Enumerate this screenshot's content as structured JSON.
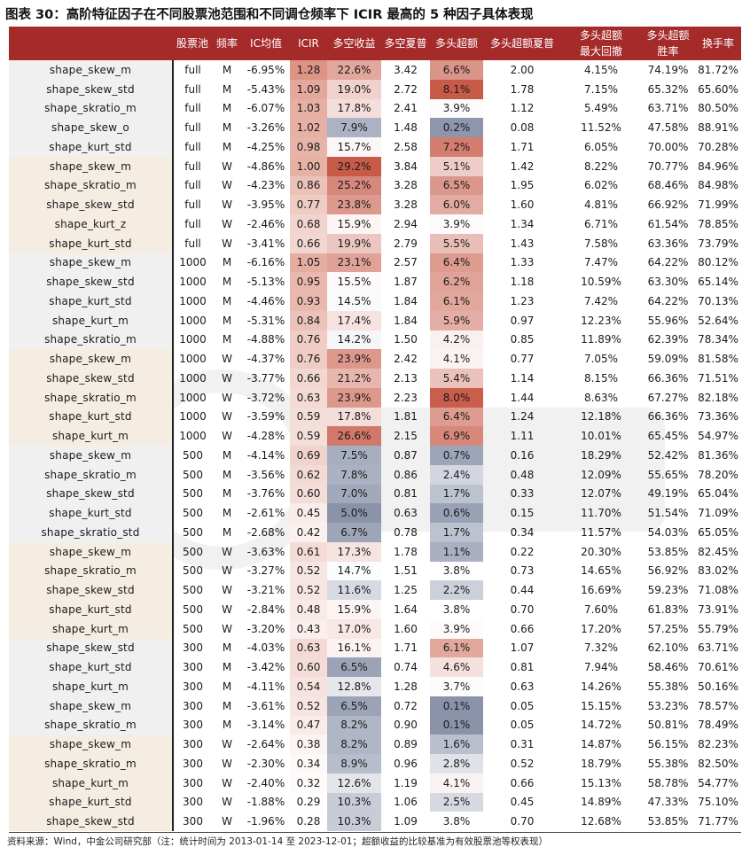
{
  "title": "图表 30：高阶特征因子在不同股票池范围和不同调仓频率下 ICIR 最高的 5 种因子具体表现",
  "headers": [
    "",
    "股票池",
    "频率",
    "IC均值",
    "ICIR",
    "多空收益",
    "多空夏普",
    "多头超额",
    "多头超额夏普",
    "多头超额最大回撤",
    "多头超额胜率",
    "换手率"
  ],
  "header_mdd_line1": "多头超额",
  "header_mdd_line2": "最大回撤",
  "rows": [
    {
      "factor": "shape_skew_m",
      "pool": "full",
      "freq": "M",
      "ic": "-6.95%",
      "icir": "1.28",
      "ls": "22.6%",
      "lss": "3.42",
      "ex": "6.6%",
      "exs": "2.00",
      "mdd": "4.15%",
      "win": "74.19%",
      "turn": "81.72%"
    },
    {
      "factor": "shape_skew_std",
      "pool": "full",
      "freq": "M",
      "ic": "-5.43%",
      "icir": "1.09",
      "ls": "19.0%",
      "lss": "2.72",
      "ex": "8.1%",
      "exs": "1.78",
      "mdd": "7.15%",
      "win": "65.32%",
      "turn": "65.60%"
    },
    {
      "factor": "shape_skratio_m",
      "pool": "full",
      "freq": "M",
      "ic": "-6.07%",
      "icir": "1.03",
      "ls": "17.8%",
      "lss": "2.41",
      "ex": "3.9%",
      "exs": "1.12",
      "mdd": "5.49%",
      "win": "63.71%",
      "turn": "80.50%"
    },
    {
      "factor": "shape_skew_o",
      "pool": "full",
      "freq": "M",
      "ic": "-3.26%",
      "icir": "1.02",
      "ls": "7.9%",
      "lss": "1.48",
      "ex": "0.2%",
      "exs": "0.08",
      "mdd": "11.52%",
      "win": "47.58%",
      "turn": "88.91%"
    },
    {
      "factor": "shape_kurt_std",
      "pool": "full",
      "freq": "M",
      "ic": "-4.25%",
      "icir": "0.98",
      "ls": "15.7%",
      "lss": "2.58",
      "ex": "7.2%",
      "exs": "1.71",
      "mdd": "6.05%",
      "win": "70.00%",
      "turn": "70.28%"
    },
    {
      "factor": "shape_skew_m",
      "pool": "full",
      "freq": "W",
      "ic": "-4.86%",
      "icir": "1.00",
      "ls": "29.2%",
      "lss": "3.84",
      "ex": "5.1%",
      "exs": "1.42",
      "mdd": "8.22%",
      "win": "70.77%",
      "turn": "84.96%"
    },
    {
      "factor": "shape_skratio_m",
      "pool": "full",
      "freq": "W",
      "ic": "-4.23%",
      "icir": "0.86",
      "ls": "25.2%",
      "lss": "3.28",
      "ex": "6.5%",
      "exs": "1.95",
      "mdd": "6.02%",
      "win": "68.46%",
      "turn": "84.98%"
    },
    {
      "factor": "shape_skew_std",
      "pool": "full",
      "freq": "W",
      "ic": "-3.95%",
      "icir": "0.77",
      "ls": "23.8%",
      "lss": "3.28",
      "ex": "6.0%",
      "exs": "1.60",
      "mdd": "4.81%",
      "win": "66.92%",
      "turn": "71.99%"
    },
    {
      "factor": "shape_kurt_z",
      "pool": "full",
      "freq": "W",
      "ic": "-2.46%",
      "icir": "0.68",
      "ls": "15.9%",
      "lss": "2.94",
      "ex": "3.9%",
      "exs": "1.34",
      "mdd": "6.71%",
      "win": "61.54%",
      "turn": "78.85%"
    },
    {
      "factor": "shape_kurt_std",
      "pool": "full",
      "freq": "W",
      "ic": "-3.41%",
      "icir": "0.66",
      "ls": "19.9%",
      "lss": "2.79",
      "ex": "5.5%",
      "exs": "1.43",
      "mdd": "7.58%",
      "win": "63.36%",
      "turn": "73.79%"
    },
    {
      "factor": "shape_skew_m",
      "pool": "1000",
      "freq": "M",
      "ic": "-6.16%",
      "icir": "1.05",
      "ls": "23.1%",
      "lss": "2.57",
      "ex": "6.4%",
      "exs": "1.33",
      "mdd": "7.47%",
      "win": "64.22%",
      "turn": "80.12%"
    },
    {
      "factor": "shape_skew_std",
      "pool": "1000",
      "freq": "M",
      "ic": "-5.13%",
      "icir": "0.95",
      "ls": "15.5%",
      "lss": "1.87",
      "ex": "6.2%",
      "exs": "1.18",
      "mdd": "10.59%",
      "win": "63.30%",
      "turn": "65.14%"
    },
    {
      "factor": "shape_kurt_std",
      "pool": "1000",
      "freq": "M",
      "ic": "-4.46%",
      "icir": "0.93",
      "ls": "14.5%",
      "lss": "1.84",
      "ex": "6.1%",
      "exs": "1.23",
      "mdd": "7.42%",
      "win": "64.22%",
      "turn": "70.13%"
    },
    {
      "factor": "shape_kurt_m",
      "pool": "1000",
      "freq": "M",
      "ic": "-5.31%",
      "icir": "0.84",
      "ls": "17.4%",
      "lss": "1.84",
      "ex": "5.9%",
      "exs": "0.97",
      "mdd": "12.23%",
      "win": "55.96%",
      "turn": "52.64%"
    },
    {
      "factor": "shape_skratio_m",
      "pool": "1000",
      "freq": "M",
      "ic": "-4.88%",
      "icir": "0.76",
      "ls": "14.2%",
      "lss": "1.50",
      "ex": "4.2%",
      "exs": "0.85",
      "mdd": "11.89%",
      "win": "62.39%",
      "turn": "78.34%"
    },
    {
      "factor": "shape_skew_m",
      "pool": "1000",
      "freq": "W",
      "ic": "-4.37%",
      "icir": "0.76",
      "ls": "23.9%",
      "lss": "2.42",
      "ex": "4.1%",
      "exs": "0.77",
      "mdd": "7.05%",
      "win": "59.09%",
      "turn": "81.58%"
    },
    {
      "factor": "shape_skew_std",
      "pool": "1000",
      "freq": "W",
      "ic": "-3.77%",
      "icir": "0.66",
      "ls": "21.2%",
      "lss": "2.13",
      "ex": "5.4%",
      "exs": "1.14",
      "mdd": "8.15%",
      "win": "66.36%",
      "turn": "71.51%"
    },
    {
      "factor": "shape_skratio_m",
      "pool": "1000",
      "freq": "W",
      "ic": "-3.72%",
      "icir": "0.63",
      "ls": "23.9%",
      "lss": "2.23",
      "ex": "8.0%",
      "exs": "1.44",
      "mdd": "8.63%",
      "win": "67.27%",
      "turn": "82.18%"
    },
    {
      "factor": "shape_kurt_std",
      "pool": "1000",
      "freq": "W",
      "ic": "-3.59%",
      "icir": "0.59",
      "ls": "17.8%",
      "lss": "1.81",
      "ex": "6.4%",
      "exs": "1.24",
      "mdd": "12.18%",
      "win": "66.36%",
      "turn": "73.36%"
    },
    {
      "factor": "shape_kurt_m",
      "pool": "1000",
      "freq": "W",
      "ic": "-4.28%",
      "icir": "0.59",
      "ls": "26.6%",
      "lss": "2.15",
      "ex": "6.9%",
      "exs": "1.11",
      "mdd": "10.01%",
      "win": "65.45%",
      "turn": "54.97%"
    },
    {
      "factor": "shape_skew_m",
      "pool": "500",
      "freq": "M",
      "ic": "-4.14%",
      "icir": "0.69",
      "ls": "7.5%",
      "lss": "0.87",
      "ex": "0.7%",
      "exs": "0.16",
      "mdd": "18.29%",
      "win": "52.42%",
      "turn": "81.36%"
    },
    {
      "factor": "shape_skratio_m",
      "pool": "500",
      "freq": "M",
      "ic": "-3.56%",
      "icir": "0.62",
      "ls": "7.8%",
      "lss": "0.86",
      "ex": "2.4%",
      "exs": "0.48",
      "mdd": "12.09%",
      "win": "55.65%",
      "turn": "78.20%"
    },
    {
      "factor": "shape_skew_std",
      "pool": "500",
      "freq": "M",
      "ic": "-3.76%",
      "icir": "0.60",
      "ls": "7.0%",
      "lss": "0.81",
      "ex": "1.7%",
      "exs": "0.33",
      "mdd": "12.07%",
      "win": "49.19%",
      "turn": "65.04%"
    },
    {
      "factor": "shape_kurt_std",
      "pool": "500",
      "freq": "M",
      "ic": "-2.61%",
      "icir": "0.45",
      "ls": "5.0%",
      "lss": "0.63",
      "ex": "0.6%",
      "exs": "0.15",
      "mdd": "11.70%",
      "win": "51.54%",
      "turn": "71.09%"
    },
    {
      "factor": "shape_skratio_std",
      "pool": "500",
      "freq": "M",
      "ic": "-2.68%",
      "icir": "0.42",
      "ls": "6.7%",
      "lss": "0.78",
      "ex": "1.7%",
      "exs": "0.34",
      "mdd": "11.57%",
      "win": "54.03%",
      "turn": "65.05%"
    },
    {
      "factor": "shape_skew_m",
      "pool": "500",
      "freq": "W",
      "ic": "-3.63%",
      "icir": "0.61",
      "ls": "17.3%",
      "lss": "1.78",
      "ex": "1.1%",
      "exs": "0.22",
      "mdd": "20.30%",
      "win": "53.85%",
      "turn": "82.45%"
    },
    {
      "factor": "shape_skratio_m",
      "pool": "500",
      "freq": "W",
      "ic": "-3.27%",
      "icir": "0.52",
      "ls": "14.7%",
      "lss": "1.51",
      "ex": "3.8%",
      "exs": "0.73",
      "mdd": "14.65%",
      "win": "56.92%",
      "turn": "83.02%"
    },
    {
      "factor": "shape_skew_std",
      "pool": "500",
      "freq": "W",
      "ic": "-3.21%",
      "icir": "0.52",
      "ls": "11.6%",
      "lss": "1.25",
      "ex": "2.2%",
      "exs": "0.44",
      "mdd": "16.69%",
      "win": "59.23%",
      "turn": "71.08%"
    },
    {
      "factor": "shape_kurt_std",
      "pool": "500",
      "freq": "W",
      "ic": "-2.84%",
      "icir": "0.48",
      "ls": "15.9%",
      "lss": "1.64",
      "ex": "3.8%",
      "exs": "0.70",
      "mdd": "7.60%",
      "win": "61.83%",
      "turn": "73.91%"
    },
    {
      "factor": "shape_kurt_m",
      "pool": "500",
      "freq": "W",
      "ic": "-3.20%",
      "icir": "0.43",
      "ls": "17.0%",
      "lss": "1.60",
      "ex": "3.9%",
      "exs": "0.66",
      "mdd": "17.20%",
      "win": "57.25%",
      "turn": "55.79%"
    },
    {
      "factor": "shape_skew_std",
      "pool": "300",
      "freq": "M",
      "ic": "-4.03%",
      "icir": "0.63",
      "ls": "16.1%",
      "lss": "1.71",
      "ex": "6.1%",
      "exs": "1.07",
      "mdd": "7.32%",
      "win": "62.10%",
      "turn": "63.71%"
    },
    {
      "factor": "shape_kurt_std",
      "pool": "300",
      "freq": "M",
      "ic": "-3.42%",
      "icir": "0.60",
      "ls": "6.5%",
      "lss": "0.74",
      "ex": "4.6%",
      "exs": "0.81",
      "mdd": "7.94%",
      "win": "58.46%",
      "turn": "70.61%"
    },
    {
      "factor": "shape_kurt_m",
      "pool": "300",
      "freq": "M",
      "ic": "-4.11%",
      "icir": "0.54",
      "ls": "12.8%",
      "lss": "1.28",
      "ex": "3.7%",
      "exs": "0.63",
      "mdd": "14.26%",
      "win": "55.38%",
      "turn": "50.16%"
    },
    {
      "factor": "shape_skew_m",
      "pool": "300",
      "freq": "M",
      "ic": "-3.61%",
      "icir": "0.52",
      "ls": "6.5%",
      "lss": "0.72",
      "ex": "0.1%",
      "exs": "0.05",
      "mdd": "15.15%",
      "win": "53.23%",
      "turn": "78.57%"
    },
    {
      "factor": "shape_skratio_m",
      "pool": "300",
      "freq": "M",
      "ic": "-3.14%",
      "icir": "0.47",
      "ls": "8.2%",
      "lss": "0.90",
      "ex": "0.1%",
      "exs": "0.05",
      "mdd": "14.72%",
      "win": "50.81%",
      "turn": "78.49%"
    },
    {
      "factor": "shape_skew_m",
      "pool": "300",
      "freq": "W",
      "ic": "-2.64%",
      "icir": "0.38",
      "ls": "8.2%",
      "lss": "0.89",
      "ex": "1.6%",
      "exs": "0.31",
      "mdd": "14.87%",
      "win": "56.15%",
      "turn": "82.23%"
    },
    {
      "factor": "shape_skratio_m",
      "pool": "300",
      "freq": "W",
      "ic": "-2.30%",
      "icir": "0.34",
      "ls": "8.9%",
      "lss": "0.96",
      "ex": "2.8%",
      "exs": "0.52",
      "mdd": "18.79%",
      "win": "55.38%",
      "turn": "82.50%"
    },
    {
      "factor": "shape_kurt_m",
      "pool": "300",
      "freq": "W",
      "ic": "-2.40%",
      "icir": "0.32",
      "ls": "12.6%",
      "lss": "1.19",
      "ex": "4.1%",
      "exs": "0.66",
      "mdd": "15.13%",
      "win": "58.78%",
      "turn": "54.77%"
    },
    {
      "factor": "shape_kurt_std",
      "pool": "300",
      "freq": "W",
      "ic": "-1.88%",
      "icir": "0.29",
      "ls": "10.3%",
      "lss": "1.06",
      "ex": "2.5%",
      "exs": "0.45",
      "mdd": "14.89%",
      "win": "47.33%",
      "turn": "75.10%"
    },
    {
      "factor": "shape_skew_std",
      "pool": "300",
      "freq": "W",
      "ic": "-1.96%",
      "icir": "0.28",
      "ls": "10.3%",
      "lss": "1.09",
      "ex": "3.8%",
      "exs": "0.70",
      "mdd": "12.68%",
      "win": "53.85%",
      "turn": "71.77%"
    }
  ],
  "colors": {
    "header_bg": "#a52a2a",
    "factor_bg_monthly": "#f0f0f0",
    "factor_bg_weekly": "#f5ede2",
    "heat_high": "#c85a48",
    "heat_low": "#8a93aa"
  },
  "source": "资料来源：Wind，中金公司研究部（注：统计时间为 2013-01-14 至 2023-12-01；超额收益的比较基准为有效股票池等权表现）"
}
